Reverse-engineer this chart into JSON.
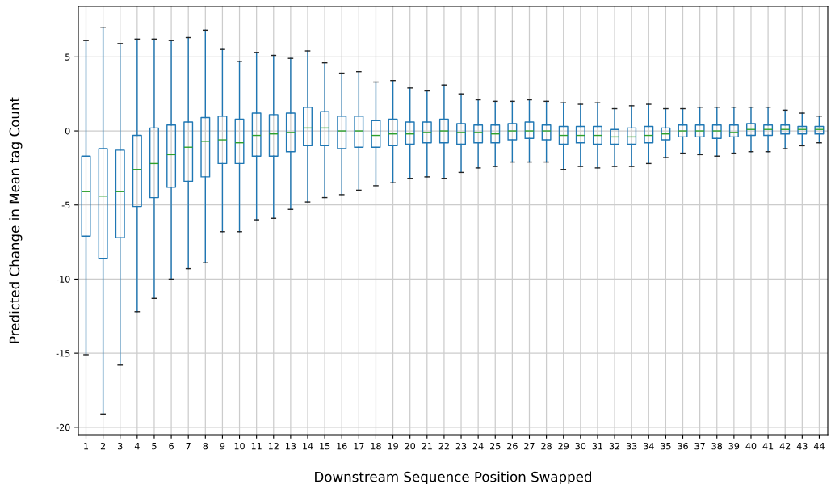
{
  "chart_data": {
    "type": "box",
    "xlabel": "Downstream Sequence Position Swapped",
    "ylabel": "Predicted Change in Mean tag Count",
    "categories": [
      "1",
      "2",
      "3",
      "4",
      "5",
      "6",
      "7",
      "8",
      "9",
      "10",
      "11",
      "12",
      "13",
      "14",
      "15",
      "16",
      "17",
      "18",
      "19",
      "20",
      "21",
      "22",
      "23",
      "24",
      "25",
      "26",
      "27",
      "28",
      "29",
      "30",
      "31",
      "32",
      "33",
      "34",
      "35",
      "36",
      "37",
      "38",
      "39",
      "40",
      "41",
      "42",
      "43",
      "44"
    ],
    "color": "#1f77b4",
    "ylim": [
      -20.5,
      8.4
    ],
    "yticks": [
      -20,
      -15,
      -10,
      -5,
      0,
      5
    ],
    "grid": true,
    "boxes": [
      {
        "low": -15.1,
        "q1": -7.1,
        "median": -4.1,
        "q3": -1.7,
        "high": 6.1
      },
      {
        "low": -19.1,
        "q1": -8.6,
        "median": -4.4,
        "q3": -1.2,
        "high": 7.0
      },
      {
        "low": -15.8,
        "q1": -7.2,
        "median": -4.1,
        "q3": -1.3,
        "high": 5.9
      },
      {
        "low": -12.2,
        "q1": -5.1,
        "median": -2.6,
        "q3": -0.3,
        "high": 6.2
      },
      {
        "low": -11.3,
        "q1": -4.5,
        "median": -2.2,
        "q3": 0.2,
        "high": 6.2
      },
      {
        "low": -10.0,
        "q1": -3.8,
        "median": -1.6,
        "q3": 0.4,
        "high": 6.1
      },
      {
        "low": -9.3,
        "q1": -3.4,
        "median": -1.1,
        "q3": 0.6,
        "high": 6.3
      },
      {
        "low": -8.9,
        "q1": -3.1,
        "median": -0.7,
        "q3": 0.9,
        "high": 6.8
      },
      {
        "low": -6.8,
        "q1": -2.2,
        "median": -0.6,
        "q3": 1.0,
        "high": 5.5
      },
      {
        "low": -6.8,
        "q1": -2.2,
        "median": -0.8,
        "q3": 0.8,
        "high": 4.7
      },
      {
        "low": -6.0,
        "q1": -1.7,
        "median": -0.3,
        "q3": 1.2,
        "high": 5.3
      },
      {
        "low": -5.9,
        "q1": -1.7,
        "median": -0.2,
        "q3": 1.1,
        "high": 5.1
      },
      {
        "low": -5.3,
        "q1": -1.4,
        "median": -0.1,
        "q3": 1.2,
        "high": 4.9
      },
      {
        "low": -4.8,
        "q1": -1.0,
        "median": 0.2,
        "q3": 1.6,
        "high": 5.4
      },
      {
        "low": -4.5,
        "q1": -1.0,
        "median": 0.2,
        "q3": 1.3,
        "high": 4.6
      },
      {
        "low": -4.3,
        "q1": -1.2,
        "median": 0.0,
        "q3": 1.0,
        "high": 3.9
      },
      {
        "low": -4.0,
        "q1": -1.1,
        "median": 0.0,
        "q3": 1.0,
        "high": 4.0
      },
      {
        "low": -3.7,
        "q1": -1.1,
        "median": -0.3,
        "q3": 0.7,
        "high": 3.3
      },
      {
        "low": -3.5,
        "q1": -1.0,
        "median": -0.2,
        "q3": 0.8,
        "high": 3.4
      },
      {
        "low": -3.2,
        "q1": -0.9,
        "median": -0.2,
        "q3": 0.6,
        "high": 2.9
      },
      {
        "low": -3.1,
        "q1": -0.8,
        "median": -0.1,
        "q3": 0.6,
        "high": 2.7
      },
      {
        "low": -3.2,
        "q1": -0.8,
        "median": 0.0,
        "q3": 0.8,
        "high": 3.1
      },
      {
        "low": -2.8,
        "q1": -0.9,
        "median": -0.1,
        "q3": 0.5,
        "high": 2.5
      },
      {
        "low": -2.5,
        "q1": -0.8,
        "median": -0.1,
        "q3": 0.4,
        "high": 2.1
      },
      {
        "low": -2.4,
        "q1": -0.8,
        "median": -0.2,
        "q3": 0.4,
        "high": 2.0
      },
      {
        "low": -2.1,
        "q1": -0.6,
        "median": 0.0,
        "q3": 0.5,
        "high": 2.0
      },
      {
        "low": -2.1,
        "q1": -0.5,
        "median": 0.0,
        "q3": 0.6,
        "high": 2.1
      },
      {
        "low": -2.1,
        "q1": -0.6,
        "median": 0.0,
        "q3": 0.4,
        "high": 2.0
      },
      {
        "low": -2.6,
        "q1": -0.9,
        "median": -0.3,
        "q3": 0.3,
        "high": 1.9
      },
      {
        "low": -2.4,
        "q1": -0.8,
        "median": -0.3,
        "q3": 0.3,
        "high": 1.8
      },
      {
        "low": -2.5,
        "q1": -0.9,
        "median": -0.3,
        "q3": 0.3,
        "high": 1.9
      },
      {
        "low": -2.4,
        "q1": -0.9,
        "median": -0.4,
        "q3": 0.1,
        "high": 1.5
      },
      {
        "low": -2.4,
        "q1": -0.9,
        "median": -0.4,
        "q3": 0.2,
        "high": 1.7
      },
      {
        "low": -2.2,
        "q1": -0.8,
        "median": -0.3,
        "q3": 0.3,
        "high": 1.8
      },
      {
        "low": -1.8,
        "q1": -0.6,
        "median": -0.2,
        "q3": 0.2,
        "high": 1.5
      },
      {
        "low": -1.5,
        "q1": -0.4,
        "median": 0.0,
        "q3": 0.4,
        "high": 1.5
      },
      {
        "low": -1.6,
        "q1": -0.4,
        "median": 0.0,
        "q3": 0.4,
        "high": 1.6
      },
      {
        "low": -1.7,
        "q1": -0.5,
        "median": 0.0,
        "q3": 0.4,
        "high": 1.6
      },
      {
        "low": -1.5,
        "q1": -0.4,
        "median": -0.1,
        "q3": 0.4,
        "high": 1.6
      },
      {
        "low": -1.4,
        "q1": -0.3,
        "median": 0.1,
        "q3": 0.5,
        "high": 1.6
      },
      {
        "low": -1.4,
        "q1": -0.3,
        "median": 0.1,
        "q3": 0.4,
        "high": 1.6
      },
      {
        "low": -1.2,
        "q1": -0.2,
        "median": 0.1,
        "q3": 0.4,
        "high": 1.4
      },
      {
        "low": -1.0,
        "q1": -0.2,
        "median": 0.1,
        "q3": 0.3,
        "high": 1.2
      },
      {
        "low": -0.8,
        "q1": -0.2,
        "median": 0.1,
        "q3": 0.3,
        "high": 1.0
      }
    ]
  }
}
